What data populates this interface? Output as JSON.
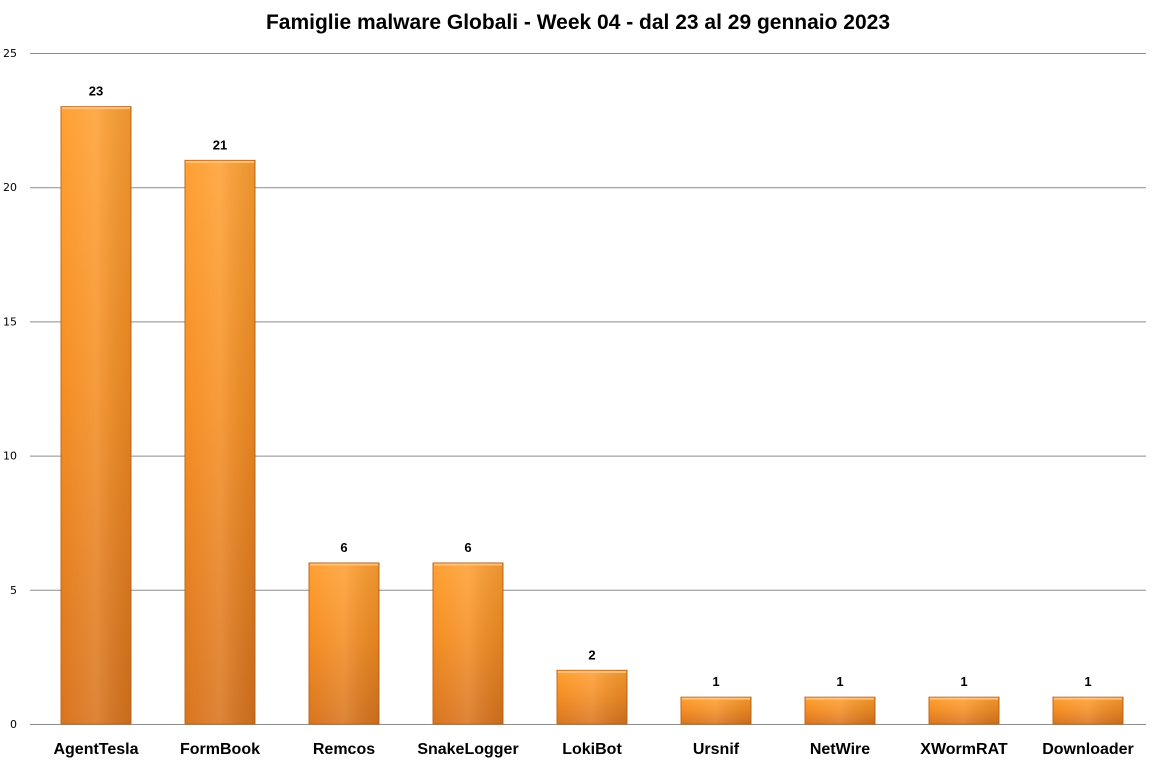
{
  "chart_data": {
    "type": "bar",
    "title": "Famiglie malware Globali - Week 04 - dal 23 al 29 gennaio 2023",
    "xlabel": "",
    "ylabel": "",
    "categories": [
      "AgentTesla",
      "FormBook",
      "Remcos",
      "SnakeLogger",
      "LokiBot",
      "Ursnif",
      "NetWire",
      "XWormRAT",
      "Downloader"
    ],
    "values": [
      23,
      21,
      6,
      6,
      2,
      1,
      1,
      1,
      1
    ],
    "ylim": [
      0,
      25
    ],
    "yticks": [
      0,
      5,
      10,
      15,
      20,
      25
    ],
    "grid": true,
    "legend": "none",
    "colors": {
      "bar_light": "#ffa033",
      "bar_mid": "#f58e22",
      "bar_dark": "#d9741e",
      "bar_edge": "#c46718",
      "grid": "#8c8c8c"
    }
  }
}
